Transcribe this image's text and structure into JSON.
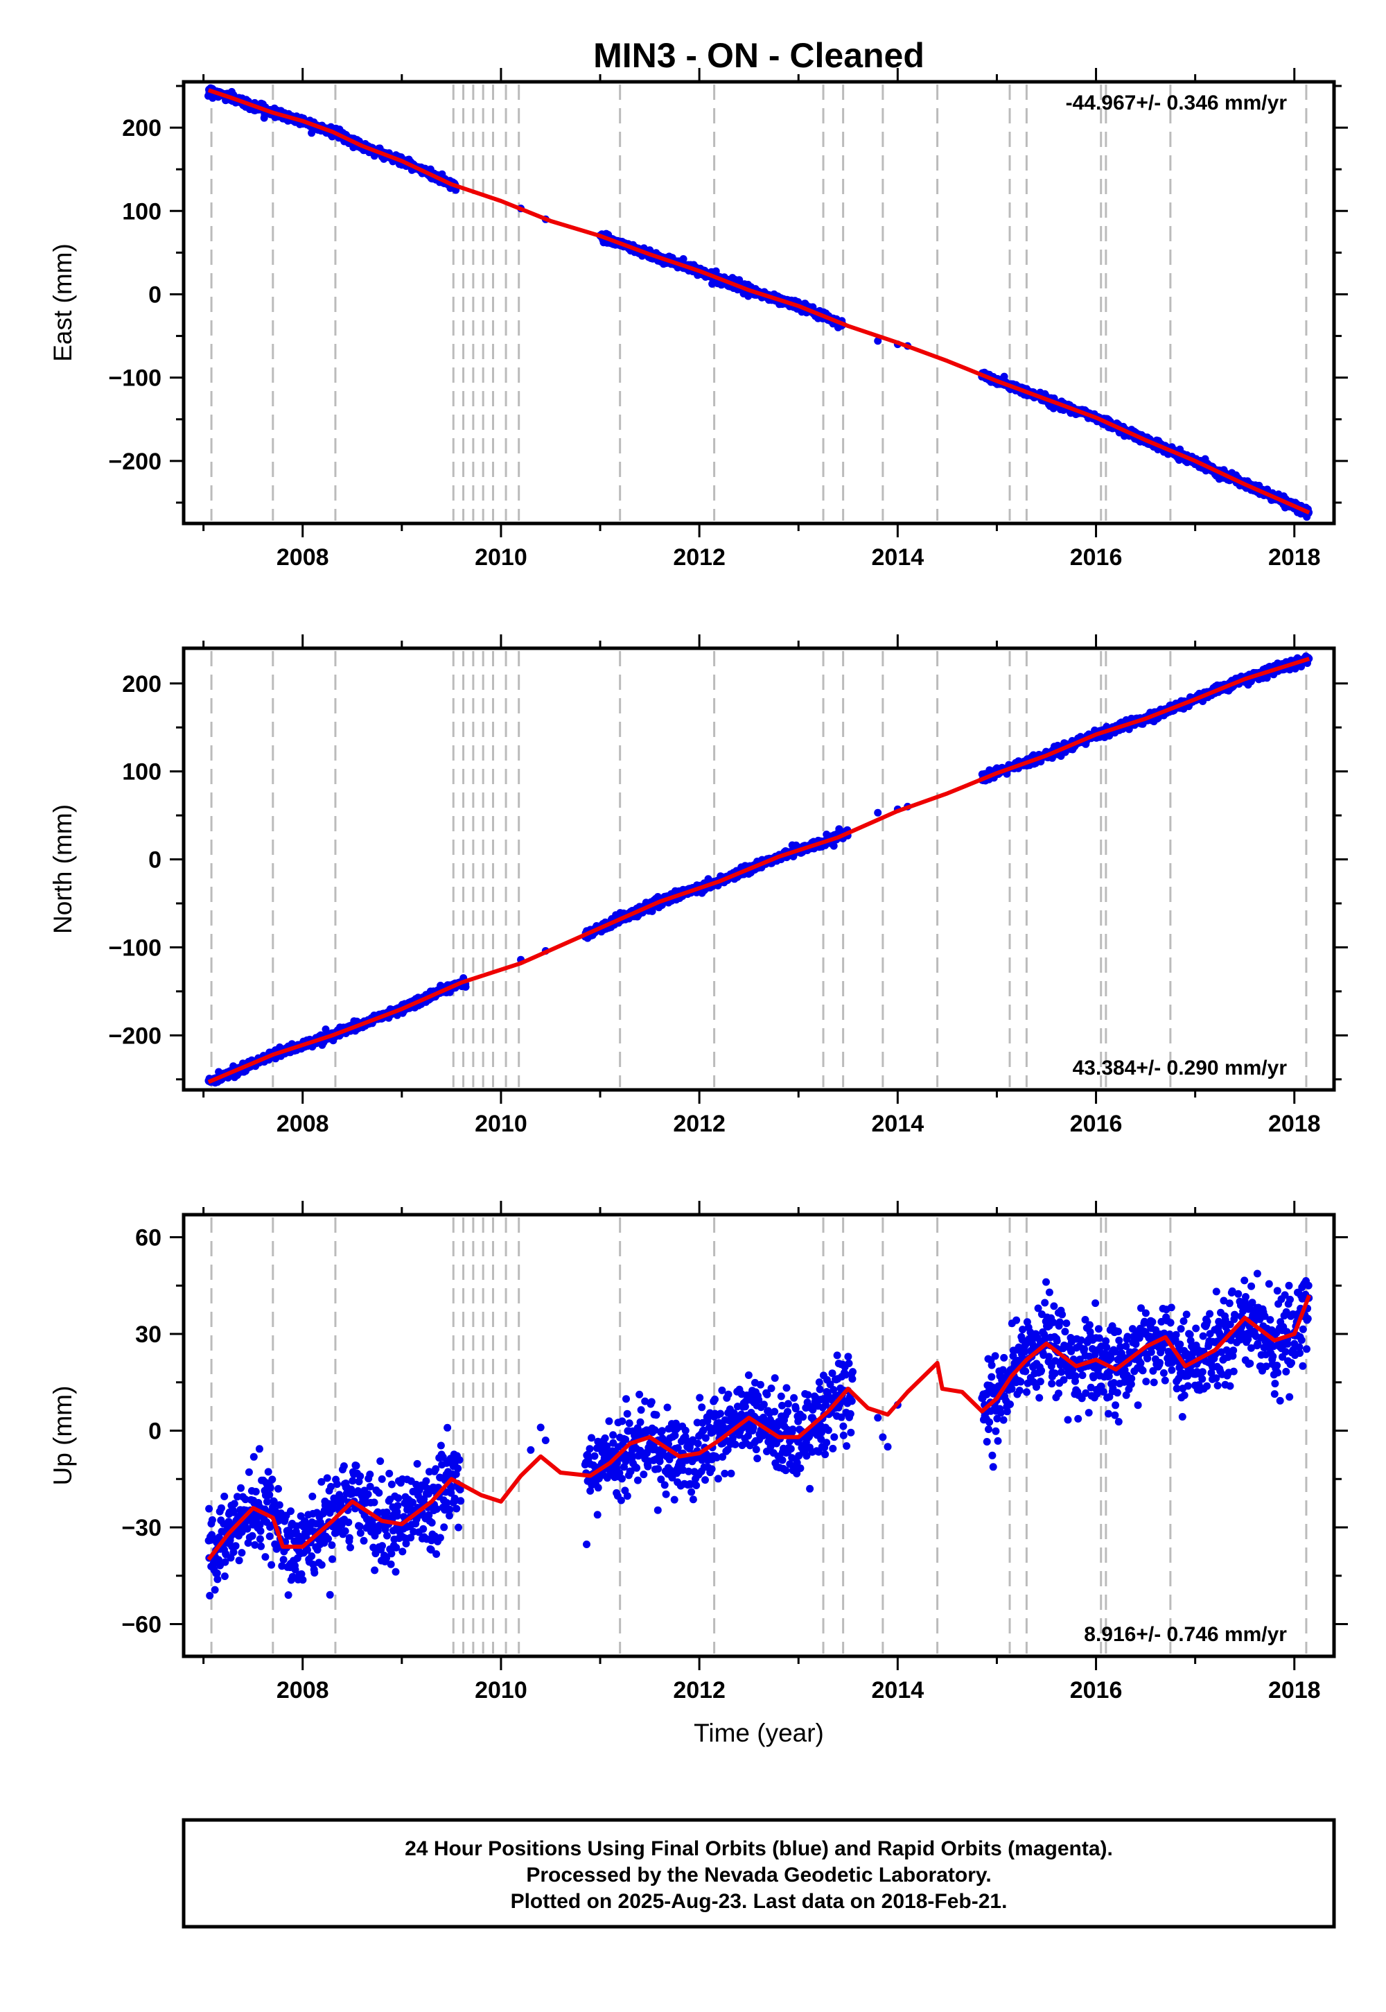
{
  "title": "MIN3  - ON - Cleaned",
  "x_axis_label": "Time (year)",
  "footer": {
    "lines": [
      "24 Hour Positions Using Final Orbits (blue) and Rapid Orbits (magenta).",
      "Processed by the Nevada Geodetic Laboratory.",
      "Plotted on 2025-Aug-23. Last data on 2018-Feb-21."
    ]
  },
  "colors": {
    "data": "#0000ee",
    "model": "#ee0000",
    "event_lines": "#bbbbbb",
    "frame": "#000000"
  },
  "chart_data": [
    {
      "type": "scatter",
      "ylabel": "East (mm)",
      "rate_text": "-44.967+/- 0.346 mm/yr",
      "rate_position": "top-right",
      "xlim": [
        2006.8,
        2018.4
      ],
      "ylim": [
        -275,
        255
      ],
      "xticks": [
        2008,
        2010,
        2012,
        2014,
        2016,
        2018
      ],
      "yticks": [
        -200,
        -100,
        0,
        100,
        200
      ],
      "ytick_labels": [
        "−200",
        "−100",
        "0",
        "100",
        "200"
      ],
      "x_model": [
        2007.05,
        2007.3,
        2007.7,
        2008.0,
        2008.3,
        2008.6,
        2009.0,
        2009.5,
        2010.0,
        2010.5,
        2011.0,
        2011.5,
        2012.0,
        2012.5,
        2013.0,
        2013.5,
        2014.0,
        2014.5,
        2015.0,
        2015.5,
        2016.0,
        2016.5,
        2017.0,
        2017.5,
        2018.15
      ],
      "y_model": [
        245,
        235,
        218,
        208,
        195,
        178,
        160,
        132,
        112,
        88,
        70,
        48,
        28,
        5,
        -14,
        -38,
        -58,
        -80,
        -104,
        -126,
        -148,
        -175,
        -200,
        -228,
        -262
      ],
      "x_data_segments": [
        [
          2007.05,
          2009.55
        ],
        [
          2011.0,
          2013.45
        ],
        [
          2014.85,
          2018.15
        ]
      ],
      "noise": 2.5
    },
    {
      "type": "scatter",
      "ylabel": "North (mm)",
      "rate_text": "43.384+/- 0.290 mm/yr",
      "rate_position": "bottom-right",
      "xlim": [
        2006.8,
        2018.4
      ],
      "ylim": [
        -262,
        240
      ],
      "xticks": [
        2008,
        2010,
        2012,
        2014,
        2016,
        2018
      ],
      "yticks": [
        -200,
        -100,
        0,
        100,
        200
      ],
      "ytick_labels": [
        "−200",
        "−100",
        "0",
        "100",
        "200"
      ],
      "x_model": [
        2007.05,
        2007.7,
        2008.3,
        2009.0,
        2009.6,
        2010.2,
        2011.0,
        2011.6,
        2012.2,
        2012.8,
        2013.4,
        2014.0,
        2014.5,
        2015.0,
        2015.5,
        2016.0,
        2016.5,
        2017.0,
        2017.5,
        2018.15
      ],
      "y_model": [
        -253,
        -222,
        -200,
        -170,
        -140,
        -118,
        -78,
        -48,
        -25,
        3,
        25,
        55,
        75,
        98,
        118,
        142,
        160,
        182,
        205,
        228
      ],
      "x_data_segments": [
        [
          2007.05,
          2009.65
        ],
        [
          2010.85,
          2013.5
        ],
        [
          2014.85,
          2018.15
        ]
      ],
      "noise": 2.5
    },
    {
      "type": "scatter",
      "ylabel": "Up (mm)",
      "rate_text": "8.916+/- 0.746 mm/yr",
      "rate_position": "bottom-right",
      "xlim": [
        2006.8,
        2018.4
      ],
      "ylim": [
        -70,
        67
      ],
      "xticks": [
        2008,
        2010,
        2012,
        2014,
        2016,
        2018
      ],
      "yticks": [
        -60,
        -30,
        0,
        30,
        60
      ],
      "ytick_labels": [
        "−60",
        "−30",
        "0",
        "30",
        "60"
      ],
      "x_model": [
        2007.05,
        2007.25,
        2007.5,
        2007.7,
        2007.8,
        2008.0,
        2008.3,
        2008.5,
        2008.8,
        2009.0,
        2009.3,
        2009.5,
        2009.8,
        2010.0,
        2010.2,
        2010.4,
        2010.6,
        2010.9,
        2011.1,
        2011.3,
        2011.5,
        2011.8,
        2012.0,
        2012.2,
        2012.5,
        2012.8,
        2013.0,
        2013.3,
        2013.5,
        2013.7,
        2013.9,
        2014.1,
        2014.4,
        2014.45,
        2014.65,
        2014.85,
        2015.0,
        2015.15,
        2015.3,
        2015.5,
        2015.8,
        2016.0,
        2016.2,
        2016.5,
        2016.7,
        2016.9,
        2017.2,
        2017.5,
        2017.8,
        2018.0,
        2018.15
      ],
      "y_model": [
        -40,
        -32,
        -24,
        -27,
        -36,
        -36,
        -28,
        -22,
        -28,
        -29,
        -22,
        -15,
        -20,
        -22,
        -14,
        -8,
        -13,
        -14,
        -10,
        -4,
        -2,
        -8,
        -7,
        -3,
        4,
        -2,
        -2,
        6,
        13,
        7,
        5,
        12,
        21,
        13,
        12,
        6,
        10,
        17,
        22,
        27,
        20,
        22,
        19,
        26,
        29,
        20,
        25,
        35,
        28,
        30,
        42
      ],
      "x_data_segments": [
        [
          2007.05,
          2009.6
        ],
        [
          2010.85,
          2013.55
        ],
        [
          2014.85,
          2018.15
        ]
      ],
      "noise": 6.5
    }
  ],
  "event_lines_x": [
    2007.08,
    2007.7,
    2008.33,
    2009.52,
    2009.62,
    2009.72,
    2009.82,
    2009.92,
    2010.05,
    2010.18,
    2011.2,
    2012.15,
    2013.25,
    2013.45,
    2013.85,
    2014.4,
    2015.13,
    2015.3,
    2016.05,
    2016.1,
    2016.75,
    2018.12
  ]
}
